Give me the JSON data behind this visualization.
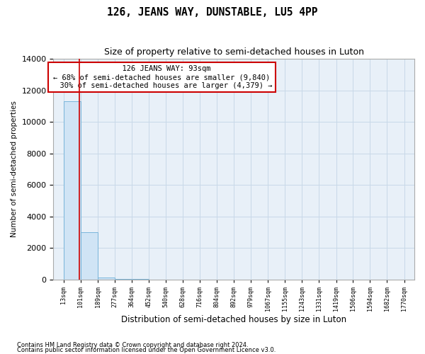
{
  "title": "126, JEANS WAY, DUNSTABLE, LU5 4PP",
  "subtitle": "Size of property relative to semi-detached houses in Luton",
  "xlabel": "Distribution of semi-detached houses by size in Luton",
  "ylabel": "Number of semi-detached properties",
  "bin_edges": [
    13,
    101,
    189,
    277,
    364,
    452,
    540,
    628,
    716,
    804,
    892,
    979,
    1067,
    1155,
    1243,
    1331,
    1419,
    1506,
    1594,
    1682,
    1770
  ],
  "bar_heights": [
    11300,
    3000,
    120,
    55,
    25,
    12,
    8,
    5,
    4,
    3,
    2,
    2,
    2,
    1,
    1,
    1,
    1,
    1,
    1,
    1
  ],
  "bar_color": "#d0e4f5",
  "bar_edge_color": "#6aaed6",
  "property_size": 93,
  "property_label": "126 JEANS WAY: 93sqm",
  "pct_smaller": 68,
  "n_smaller": 9840,
  "pct_larger": 30,
  "n_larger": 4379,
  "vline_color": "#cc0000",
  "annotation_box_color": "#cc0000",
  "ylim": [
    0,
    14000
  ],
  "tick_labels": [
    "13sqm",
    "101sqm",
    "189sqm",
    "277sqm",
    "364sqm",
    "452sqm",
    "540sqm",
    "628sqm",
    "716sqm",
    "804sqm",
    "892sqm",
    "979sqm",
    "1067sqm",
    "1155sqm",
    "1243sqm",
    "1331sqm",
    "1419sqm",
    "1506sqm",
    "1594sqm",
    "1682sqm",
    "1770sqm"
  ],
  "footer_line1": "Contains HM Land Registry data © Crown copyright and database right 2024.",
  "footer_line2": "Contains public sector information licensed under the Open Government Licence v3.0.",
  "background_color": "#ffffff",
  "grid_color": "#c8d8e8",
  "plot_bg_color": "#e8f0f8"
}
